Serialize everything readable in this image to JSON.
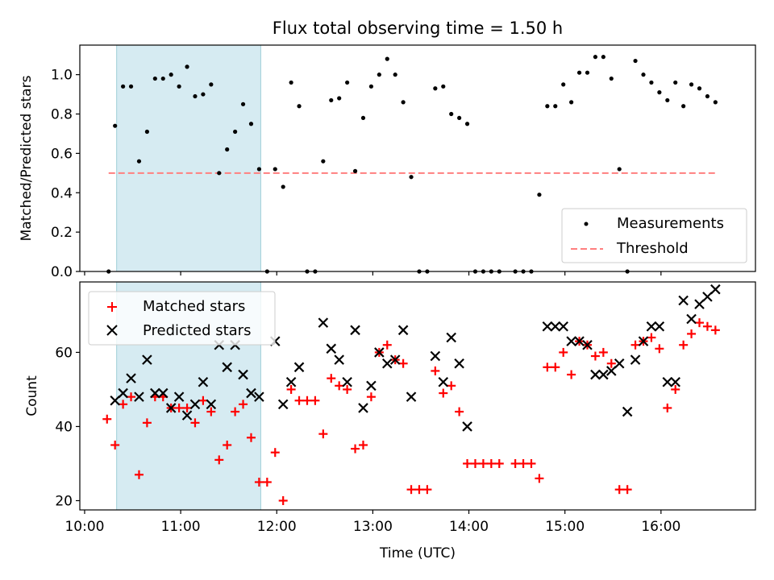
{
  "title": "Flux total observing time = 1.50 h",
  "xlabel": "Time (UTC)",
  "xticks": [
    "10:00",
    "11:00",
    "12:00",
    "13:00",
    "14:00",
    "15:00",
    "16:00"
  ],
  "colors": {
    "measurements": "#000000",
    "threshold": "#ff7f7f",
    "matched": "#ff0000",
    "predicted": "#000000",
    "shade": "#add8e6"
  },
  "chart_data": [
    {
      "type": "scatter",
      "panel": "top",
      "ylabel": "Matched/Predicted stars",
      "xlim": [
        "09:57",
        "16:59"
      ],
      "ylim": [
        0,
        1.15
      ],
      "yticks": [
        "0.0",
        "0.2",
        "0.4",
        "0.6",
        "0.8",
        "1.0"
      ],
      "shaded_interval": [
        "10:20",
        "11:50"
      ],
      "legend": {
        "placement": "lower right",
        "entries": [
          "Measurements",
          "Threshold"
        ]
      },
      "threshold": {
        "name": "Threshold",
        "y": 0.5,
        "x_range": [
          "10:15",
          "16:35"
        ]
      },
      "series": [
        {
          "name": "Measurements",
          "points": [
            [
              "10:15",
              0.0
            ],
            [
              "10:19",
              0.74
            ],
            [
              "10:24",
              0.94
            ],
            [
              "10:29",
              0.94
            ],
            [
              "10:34",
              0.56
            ],
            [
              "10:39",
              0.71
            ],
            [
              "10:44",
              0.98
            ],
            [
              "10:49",
              0.98
            ],
            [
              "10:54",
              1.0
            ],
            [
              "10:59",
              0.94
            ],
            [
              "11:04",
              1.04
            ],
            [
              "11:09",
              0.89
            ],
            [
              "11:14",
              0.9
            ],
            [
              "11:19",
              0.95
            ],
            [
              "11:24",
              0.5
            ],
            [
              "11:29",
              0.62
            ],
            [
              "11:34",
              0.71
            ],
            [
              "11:39",
              0.85
            ],
            [
              "11:44",
              0.75
            ],
            [
              "11:49",
              0.52
            ],
            [
              "11:54",
              0.0
            ],
            [
              "11:59",
              0.52
            ],
            [
              "12:04",
              0.43
            ],
            [
              "12:09",
              0.96
            ],
            [
              "12:14",
              0.84
            ],
            [
              "12:19",
              0.0
            ],
            [
              "12:24",
              0.0
            ],
            [
              "12:29",
              0.56
            ],
            [
              "12:34",
              0.87
            ],
            [
              "12:39",
              0.88
            ],
            [
              "12:44",
              0.96
            ],
            [
              "12:49",
              0.51
            ],
            [
              "12:54",
              0.78
            ],
            [
              "12:59",
              0.94
            ],
            [
              "13:04",
              1.0
            ],
            [
              "13:09",
              1.08
            ],
            [
              "13:14",
              1.0
            ],
            [
              "13:19",
              0.86
            ],
            [
              "13:24",
              0.48
            ],
            [
              "13:29",
              0.0
            ],
            [
              "13:34",
              0.0
            ],
            [
              "13:39",
              0.93
            ],
            [
              "13:44",
              0.94
            ],
            [
              "13:49",
              0.8
            ],
            [
              "13:54",
              0.78
            ],
            [
              "13:59",
              0.75
            ],
            [
              "14:04",
              0.0
            ],
            [
              "14:09",
              0.0
            ],
            [
              "14:14",
              0.0
            ],
            [
              "14:19",
              0.0
            ],
            [
              "14:29",
              0.0
            ],
            [
              "14:34",
              0.0
            ],
            [
              "14:39",
              0.0
            ],
            [
              "14:44",
              0.39
            ],
            [
              "14:49",
              0.84
            ],
            [
              "14:54",
              0.84
            ],
            [
              "14:59",
              0.95
            ],
            [
              "15:04",
              0.86
            ],
            [
              "15:09",
              1.01
            ],
            [
              "15:14",
              1.01
            ],
            [
              "15:19",
              1.09
            ],
            [
              "15:24",
              1.09
            ],
            [
              "15:29",
              0.98
            ],
            [
              "15:34",
              0.52
            ],
            [
              "15:39",
              0.0
            ],
            [
              "15:44",
              1.07
            ],
            [
              "15:49",
              1.0
            ],
            [
              "15:54",
              0.96
            ],
            [
              "15:59",
              0.91
            ],
            [
              "16:04",
              0.87
            ],
            [
              "16:09",
              0.96
            ],
            [
              "16:14",
              0.84
            ],
            [
              "16:19",
              0.95
            ],
            [
              "16:24",
              0.93
            ],
            [
              "16:29",
              0.89
            ],
            [
              "16:34",
              0.86
            ]
          ]
        }
      ]
    },
    {
      "type": "scatter",
      "panel": "bottom",
      "ylabel": "Count",
      "xlabel": "Time (UTC)",
      "xlim": [
        "09:57",
        "16:59"
      ],
      "ylim": [
        17.5,
        79
      ],
      "yticks": [
        "20",
        "40",
        "60"
      ],
      "shaded_interval": [
        "10:20",
        "11:50"
      ],
      "legend": {
        "placement": "upper left",
        "entries": [
          "Matched stars",
          "Predicted stars"
        ]
      },
      "series": [
        {
          "name": "Matched stars",
          "marker": "+",
          "points": [
            [
              "10:14",
              42
            ],
            [
              "10:19",
              35
            ],
            [
              "10:24",
              46
            ],
            [
              "10:29",
              48
            ],
            [
              "10:34",
              27
            ],
            [
              "10:39",
              41
            ],
            [
              "10:44",
              48
            ],
            [
              "10:49",
              48
            ],
            [
              "10:54",
              45
            ],
            [
              "10:59",
              45
            ],
            [
              "11:04",
              45
            ],
            [
              "11:09",
              41
            ],
            [
              "11:14",
              47
            ],
            [
              "11:19",
              44
            ],
            [
              "11:24",
              31
            ],
            [
              "11:29",
              35
            ],
            [
              "11:34",
              44
            ],
            [
              "11:39",
              46
            ],
            [
              "11:44",
              37
            ],
            [
              "11:49",
              25
            ],
            [
              "11:54",
              25
            ],
            [
              "11:59",
              33
            ],
            [
              "12:04",
              20
            ],
            [
              "12:09",
              50
            ],
            [
              "12:14",
              47
            ],
            [
              "12:19",
              47
            ],
            [
              "12:24",
              47
            ],
            [
              "12:29",
              38
            ],
            [
              "12:34",
              53
            ],
            [
              "12:39",
              51
            ],
            [
              "12:44",
              50
            ],
            [
              "12:49",
              34
            ],
            [
              "12:54",
              35
            ],
            [
              "12:59",
              48
            ],
            [
              "13:04",
              60
            ],
            [
              "13:09",
              62
            ],
            [
              "13:14",
              58
            ],
            [
              "13:19",
              57
            ],
            [
              "13:24",
              23
            ],
            [
              "13:29",
              23
            ],
            [
              "13:34",
              23
            ],
            [
              "13:39",
              55
            ],
            [
              "13:44",
              49
            ],
            [
              "13:49",
              51
            ],
            [
              "13:54",
              44
            ],
            [
              "13:59",
              30
            ],
            [
              "14:04",
              30
            ],
            [
              "14:09",
              30
            ],
            [
              "14:14",
              30
            ],
            [
              "14:19",
              30
            ],
            [
              "14:29",
              30
            ],
            [
              "14:34",
              30
            ],
            [
              "14:39",
              30
            ],
            [
              "14:44",
              26
            ],
            [
              "14:49",
              56
            ],
            [
              "14:54",
              56
            ],
            [
              "14:59",
              60
            ],
            [
              "15:04",
              54
            ],
            [
              "15:09",
              63
            ],
            [
              "15:14",
              62
            ],
            [
              "15:19",
              59
            ],
            [
              "15:24",
              60
            ],
            [
              "15:29",
              57
            ],
            [
              "15:34",
              23
            ],
            [
              "15:39",
              23
            ],
            [
              "15:44",
              62
            ],
            [
              "15:49",
              63
            ],
            [
              "15:54",
              64
            ],
            [
              "15:59",
              61
            ],
            [
              "16:04",
              45
            ],
            [
              "16:09",
              50
            ],
            [
              "16:14",
              62
            ],
            [
              "16:19",
              65
            ],
            [
              "16:24",
              68
            ],
            [
              "16:29",
              67
            ],
            [
              "16:34",
              66
            ]
          ]
        },
        {
          "name": "Predicted stars",
          "marker": "x",
          "points": [
            [
              "10:19",
              47
            ],
            [
              "10:24",
              49
            ],
            [
              "10:29",
              53
            ],
            [
              "10:34",
              48
            ],
            [
              "10:39",
              58
            ],
            [
              "10:44",
              49
            ],
            [
              "10:49",
              49
            ],
            [
              "10:54",
              45
            ],
            [
              "10:59",
              48
            ],
            [
              "11:04",
              43
            ],
            [
              "11:09",
              46
            ],
            [
              "11:14",
              52
            ],
            [
              "11:19",
              46
            ],
            [
              "11:24",
              62
            ],
            [
              "11:29",
              56
            ],
            [
              "11:34",
              62
            ],
            [
              "11:39",
              54
            ],
            [
              "11:44",
              49
            ],
            [
              "11:49",
              48
            ],
            [
              "11:59",
              63
            ],
            [
              "12:04",
              46
            ],
            [
              "12:09",
              52
            ],
            [
              "12:14",
              56
            ],
            [
              "12:29",
              68
            ],
            [
              "12:34",
              61
            ],
            [
              "12:39",
              58
            ],
            [
              "12:44",
              52
            ],
            [
              "12:49",
              66
            ],
            [
              "12:54",
              45
            ],
            [
              "12:59",
              51
            ],
            [
              "13:04",
              60
            ],
            [
              "13:09",
              57
            ],
            [
              "13:14",
              58
            ],
            [
              "13:19",
              66
            ],
            [
              "13:24",
              48
            ],
            [
              "13:39",
              59
            ],
            [
              "13:44",
              52
            ],
            [
              "13:49",
              64
            ],
            [
              "13:54",
              57
            ],
            [
              "13:59",
              40
            ],
            [
              "14:49",
              67
            ],
            [
              "14:54",
              67
            ],
            [
              "14:59",
              67
            ],
            [
              "15:04",
              63
            ],
            [
              "15:09",
              63
            ],
            [
              "15:14",
              62
            ],
            [
              "15:19",
              54
            ],
            [
              "15:24",
              54
            ],
            [
              "15:29",
              55
            ],
            [
              "15:34",
              57
            ],
            [
              "15:39",
              44
            ],
            [
              "15:44",
              58
            ],
            [
              "15:49",
              63
            ],
            [
              "15:54",
              67
            ],
            [
              "15:59",
              67
            ],
            [
              "16:04",
              52
            ],
            [
              "16:09",
              52
            ],
            [
              "16:14",
              74
            ],
            [
              "16:19",
              69
            ],
            [
              "16:24",
              73
            ],
            [
              "16:29",
              75
            ],
            [
              "16:34",
              77
            ]
          ]
        }
      ]
    }
  ]
}
